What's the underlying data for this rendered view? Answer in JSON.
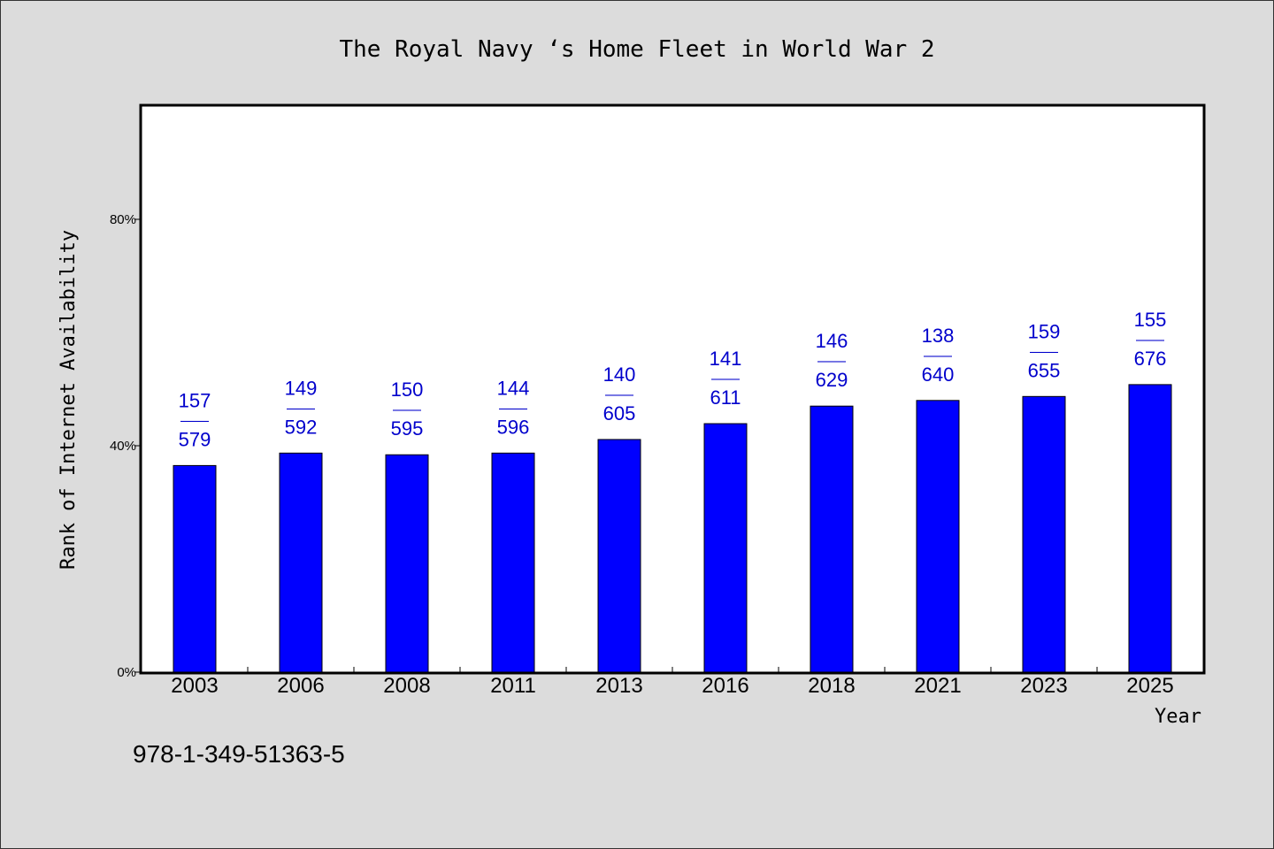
{
  "chart_data": {
    "type": "bar",
    "title": "The Royal Navy ‘s Home Fleet in World War 2",
    "xlabel": "Year",
    "ylabel": "Rank of Internet Availability",
    "categories": [
      "2003",
      "2006",
      "2008",
      "2011",
      "2013",
      "2016",
      "2018",
      "2021",
      "2023",
      "2025"
    ],
    "values": [
      36.5,
      38.7,
      38.4,
      38.7,
      41.1,
      43.9,
      47.0,
      48.0,
      48.7,
      50.8
    ],
    "annotations": [
      {
        "top": "157",
        "sep": "——",
        "bottom": "579"
      },
      {
        "top": "149",
        "sep": "——",
        "bottom": "592"
      },
      {
        "top": "150",
        "sep": "——",
        "bottom": "595"
      },
      {
        "top": "144",
        "sep": "——",
        "bottom": "596"
      },
      {
        "top": "140",
        "sep": "——",
        "bottom": "605"
      },
      {
        "top": "141",
        "sep": "——",
        "bottom": "611"
      },
      {
        "top": "146",
        "sep": "——",
        "bottom": "629"
      },
      {
        "top": "138",
        "sep": "——",
        "bottom": "640"
      },
      {
        "top": "159",
        "sep": "——",
        "bottom": "655"
      },
      {
        "top": "155",
        "sep": "——",
        "bottom": "676"
      }
    ],
    "ylim": [
      0,
      100
    ],
    "yticks": [
      {
        "value": 0,
        "label": "0%"
      },
      {
        "value": 40,
        "label": "40%"
      },
      {
        "value": 80,
        "label": "80%"
      }
    ],
    "grid": false,
    "bar_color": "#0000ff",
    "label_color": "#0000cc",
    "footnote": "978-1-349-51363-5"
  }
}
